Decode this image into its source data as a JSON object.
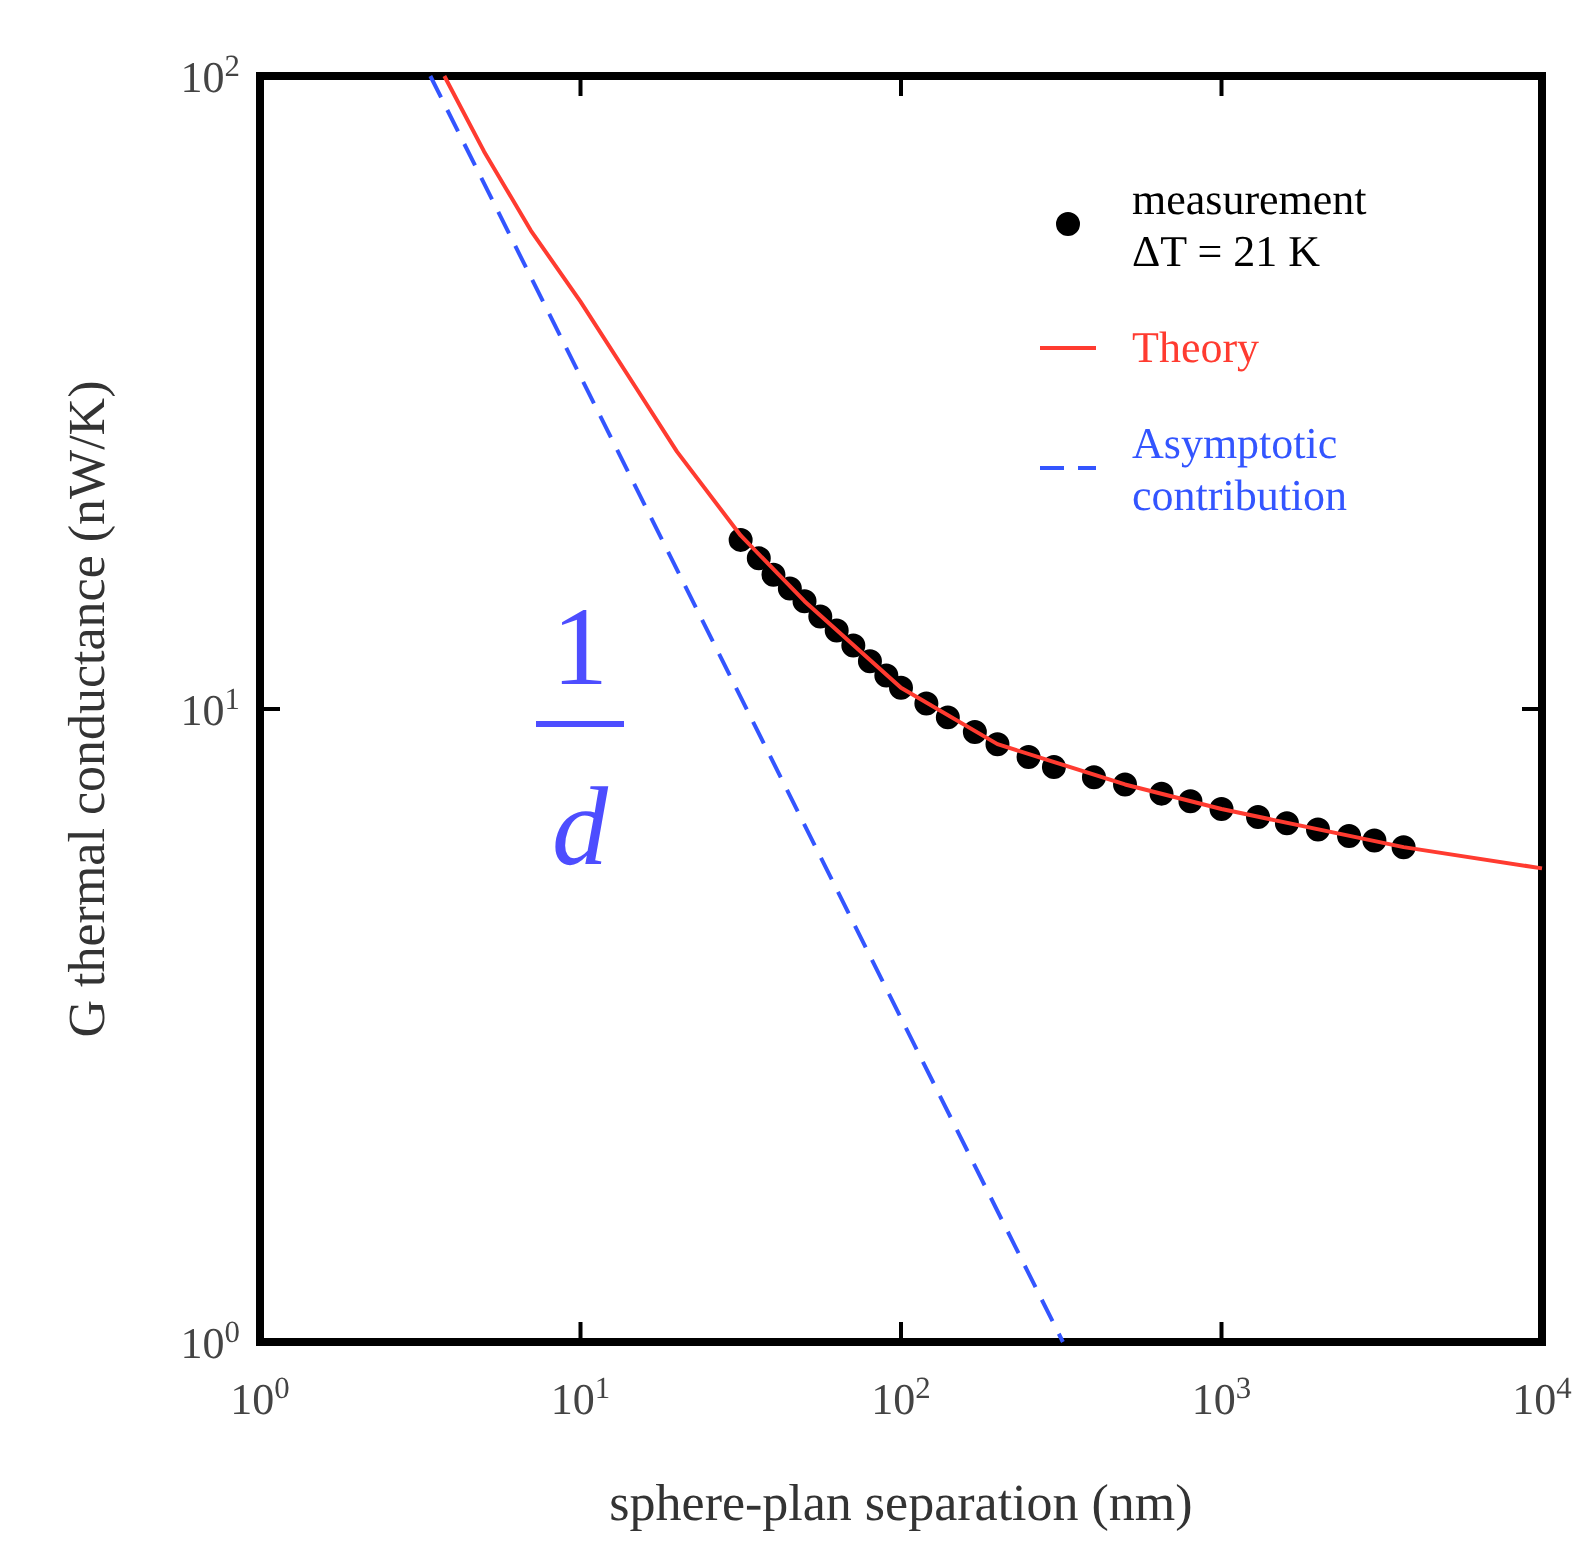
{
  "chart_data": {
    "type": "line",
    "xlabel": "sphere-plan separation (nm)",
    "ylabel": "G thermal conductance (nW/K)",
    "log": "xy",
    "xlim": [
      1,
      10000
    ],
    "ylim": [
      1,
      100
    ],
    "xticks": [
      {
        "value": 1,
        "label": "10$^{0}$"
      },
      {
        "value": 10,
        "label": "10$^{1}$"
      },
      {
        "value": 100,
        "label": "10$^{2}$"
      },
      {
        "value": 1000,
        "label": "10$^{3}$"
      },
      {
        "value": 10000,
        "label": "10$^{4}$"
      }
    ],
    "yticks": [
      {
        "value": 1,
        "label": "10$^{0}$"
      },
      {
        "value": 10,
        "label": "10$^{1}$"
      },
      {
        "value": 100,
        "label": "10$^{2}$"
      }
    ],
    "grid": false,
    "legend": "top right",
    "series": [
      {
        "name": "measurement\nΔT = 21 K",
        "type": "scatter",
        "marker": "circle",
        "color": "#000000",
        "x": [
          31.6,
          36,
          40,
          45,
          50,
          56,
          63,
          71,
          80,
          90,
          100,
          120,
          140,
          170,
          200,
          250,
          300,
          400,
          500,
          650,
          800,
          1000,
          1300,
          1600,
          2000,
          2500,
          3000,
          3700
        ],
        "values": [
          18.5,
          17.3,
          16.3,
          15.5,
          14.8,
          14.0,
          13.3,
          12.6,
          11.9,
          11.3,
          10.8,
          10.2,
          9.7,
          9.2,
          8.8,
          8.4,
          8.1,
          7.8,
          7.6,
          7.35,
          7.15,
          6.95,
          6.75,
          6.6,
          6.45,
          6.3,
          6.2,
          6.05
        ]
      },
      {
        "name": "Theory",
        "type": "line",
        "line_style": "solid",
        "color": "#ff3b30",
        "x": [
          3.76,
          5,
          7,
          10,
          15,
          20,
          31.6,
          50,
          100,
          200,
          500,
          1000,
          3700,
          10000
        ],
        "values": [
          100,
          76,
          57,
          44,
          32,
          25.5,
          18.8,
          14.8,
          10.8,
          8.8,
          7.6,
          6.95,
          6.05,
          5.6
        ]
      },
      {
        "name": "Asymptotic\ncontribution",
        "type": "line",
        "line_style": "dashed",
        "color": "#3355ff",
        "x": [
          3.4,
          320
        ],
        "values": [
          100,
          1
        ]
      }
    ],
    "annotations": [
      "1",
      "d"
    ]
  }
}
